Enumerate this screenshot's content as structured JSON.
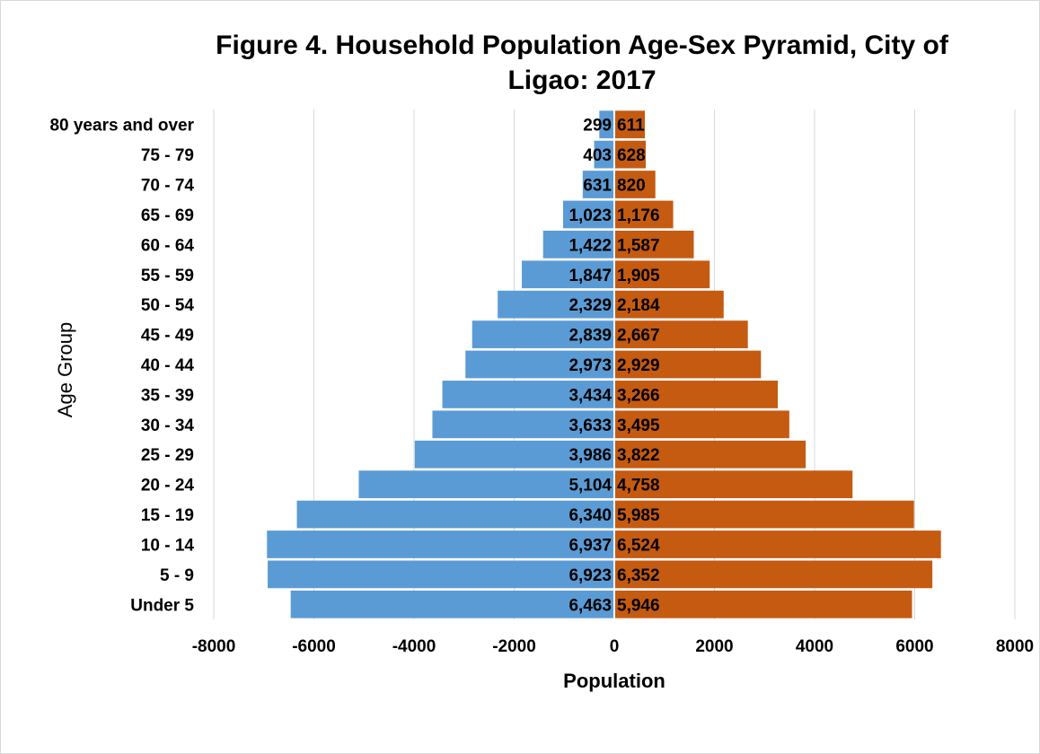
{
  "chart_data": {
    "type": "bar",
    "orientation": "horizontal",
    "stacked": true,
    "title_lines": [
      "Figure 4. Household Population Age-Sex Pyramid, City of",
      "Ligao: 2017"
    ],
    "xlabel": "Population",
    "ylabel": "Age Group",
    "xlim": [
      -8000,
      8000
    ],
    "xticks": [
      -8000,
      -6000,
      -4000,
      -2000,
      0,
      2000,
      4000,
      6000,
      8000
    ],
    "grid": true,
    "legend": "none",
    "categories": [
      "80 years and over",
      "75 - 79",
      "70 - 74",
      "65 - 69",
      "60 - 64",
      "55 - 59",
      "50 - 54",
      "45 - 49",
      "40 - 44",
      "35 - 39",
      "30 - 34",
      "25 - 29",
      "20 - 24",
      "15 - 19",
      "10 - 14",
      "5 - 9",
      "Under  5"
    ],
    "series": [
      {
        "color": "#5b9bd5",
        "values": [
          -299,
          -403,
          -631,
          -1023,
          -1422,
          -1847,
          -2329,
          -2839,
          -2973,
          -3434,
          -3633,
          -3986,
          -5104,
          -6340,
          -6937,
          -6923,
          -6463
        ],
        "labels": [
          "299",
          "403",
          "631",
          "1,023",
          "1,422",
          "1,847",
          "2,329",
          "2,839",
          "2,973",
          "3,434",
          "3,633",
          "3,986",
          "5,104",
          "6,340",
          "6,937",
          "6,923",
          "6,463"
        ]
      },
      {
        "color": "#c55a11",
        "values": [
          611,
          628,
          820,
          1176,
          1587,
          1905,
          2184,
          2667,
          2929,
          3266,
          3495,
          3822,
          4758,
          5985,
          6524,
          6352,
          5946
        ],
        "labels": [
          "611",
          "628",
          "820",
          "1,176",
          "1,587",
          "1,905",
          "2,184",
          "2,667",
          "2,929",
          "3,266",
          "3,495",
          "3,822",
          "4,758",
          "5,985",
          "6,524",
          "6,352",
          "5,946"
        ]
      }
    ]
  }
}
